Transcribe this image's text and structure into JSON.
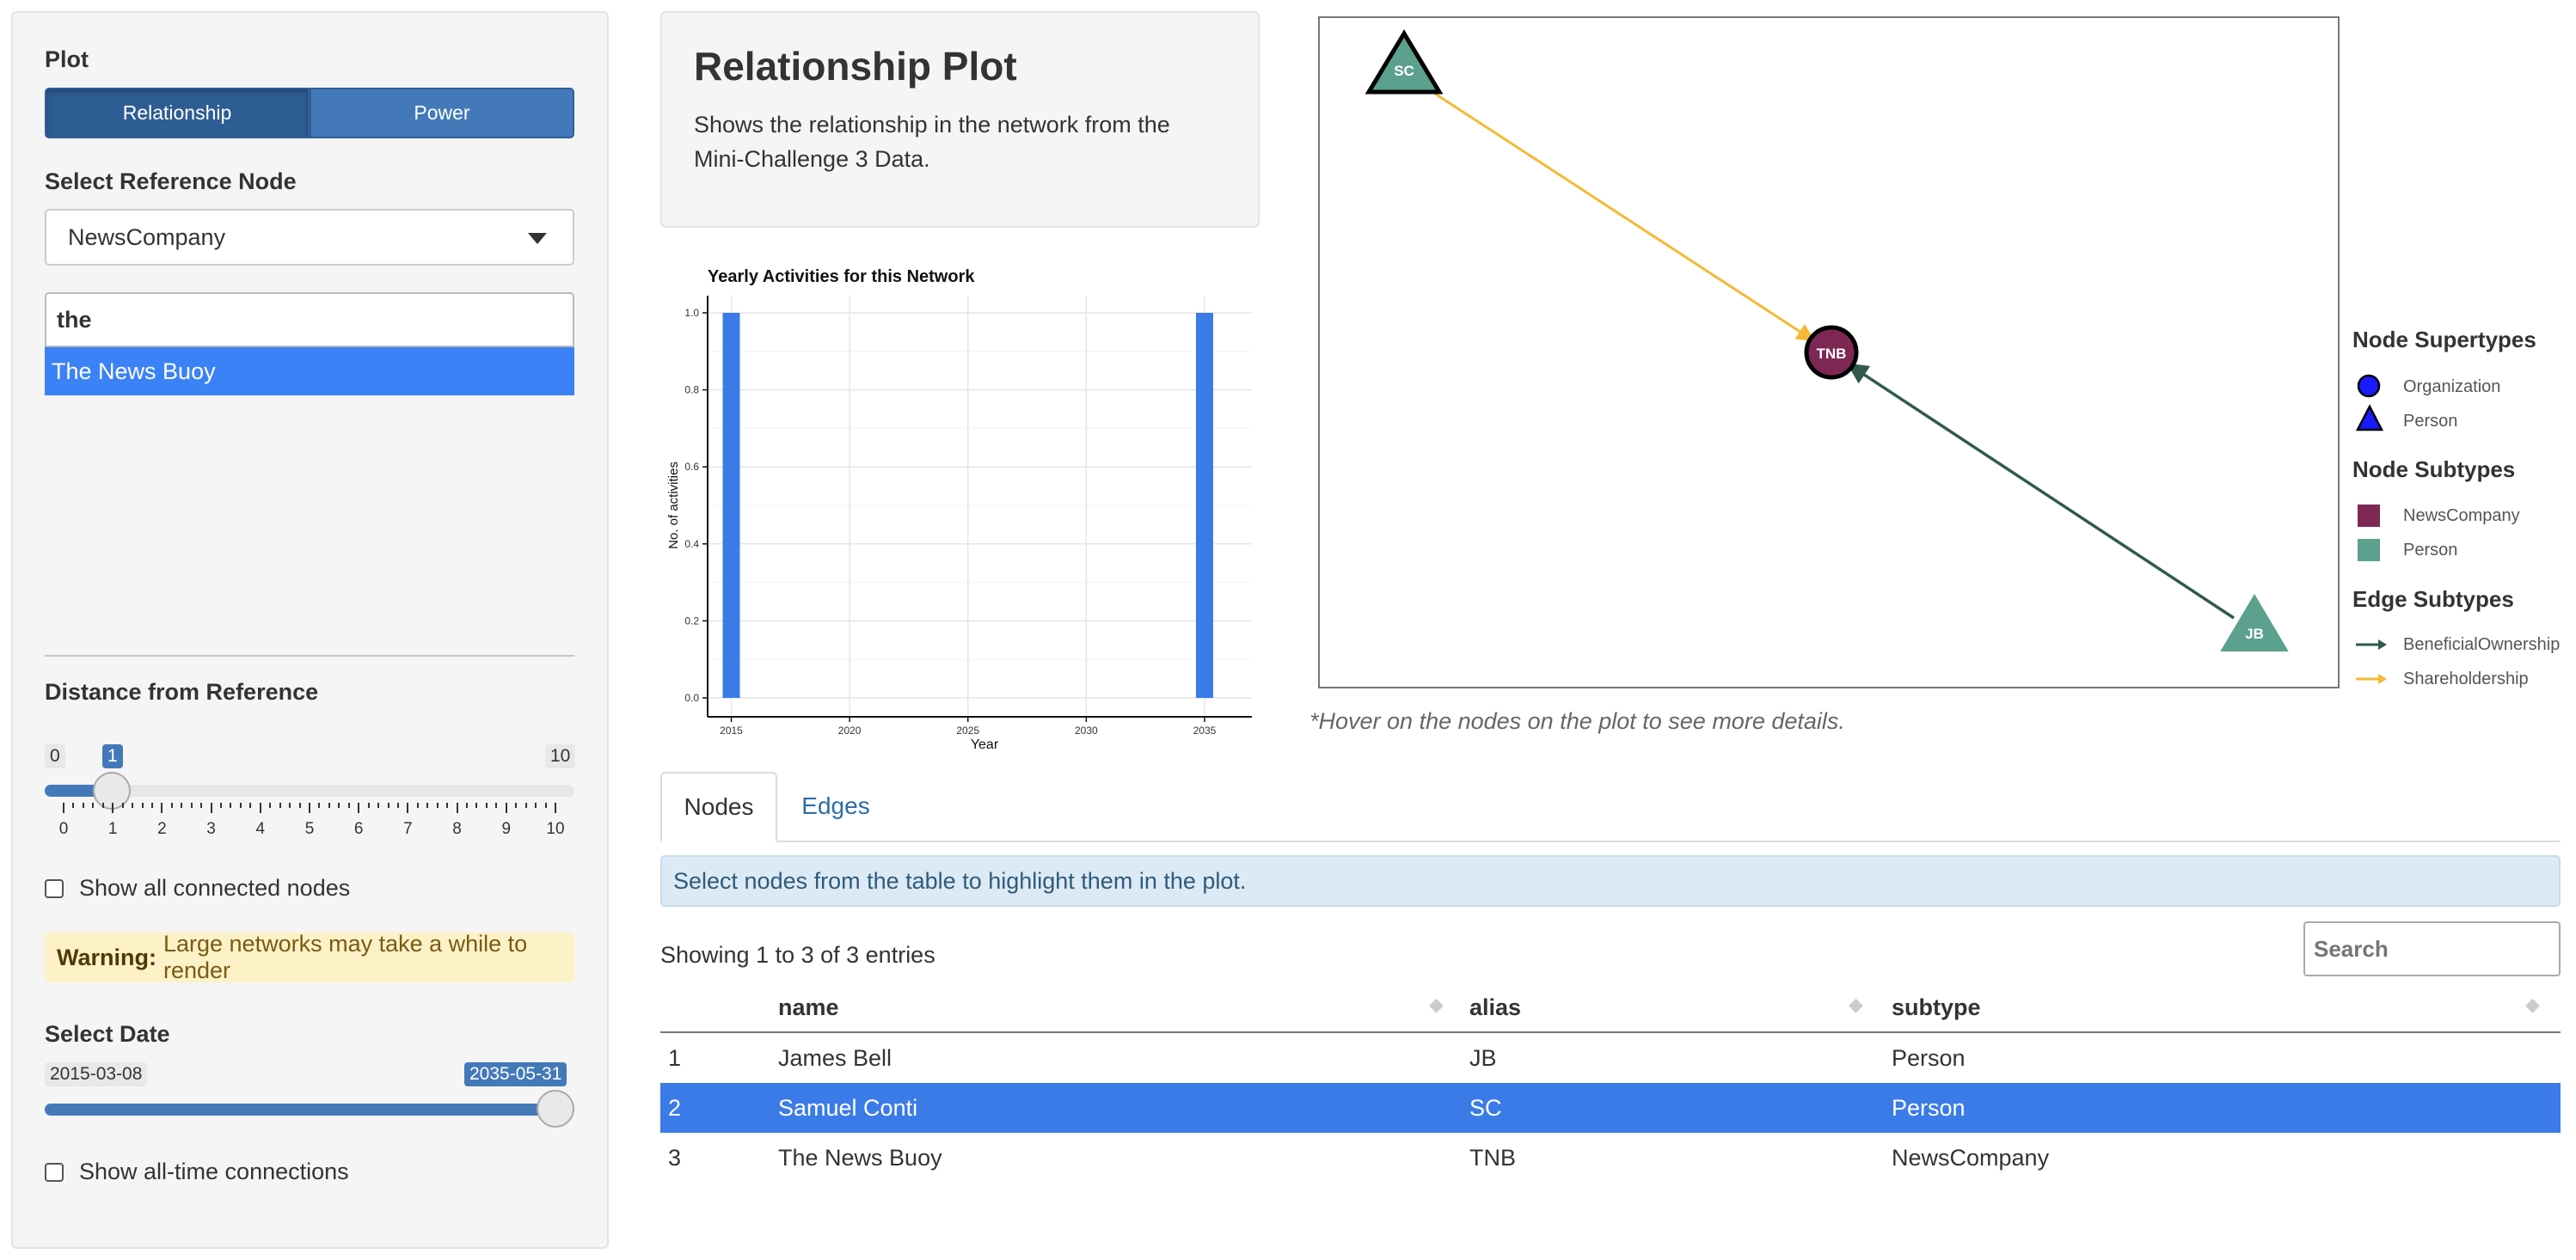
{
  "sidebar": {
    "plot_label": "Plot",
    "plot_buttons": [
      "Relationship",
      "Power"
    ],
    "active_plot": "Relationship",
    "ref_node_label": "Select Reference Node",
    "ref_node_value": "NewsCompany",
    "search_text": "the",
    "search_result": "The News Buoy",
    "distance_label": "Distance from Reference",
    "distance_min": "0",
    "distance_max": "10",
    "distance_value": "1",
    "distance_ticks": [
      "0",
      "1",
      "2",
      "3",
      "4",
      "5",
      "6",
      "7",
      "8",
      "9",
      "10"
    ],
    "show_connected_label": "Show all connected nodes",
    "warning_bold": "Warning:",
    "warning_text": "Large networks may take a while to render",
    "date_label": "Select Date",
    "date_min": "2015-03-08",
    "date_value": "2035-05-31",
    "show_alltime_label": "Show all-time connections"
  },
  "description": {
    "title": "Relationship Plot",
    "text": "Shows the relationship in the network from the Mini-Challenge 3 Data."
  },
  "chart_data": {
    "type": "bar",
    "title": "Yearly Activities for this Network",
    "xlabel": "Year",
    "ylabel": "No. of activities",
    "x": [
      2015,
      2035
    ],
    "values": [
      1.0,
      1.0
    ],
    "xticks": [
      "2015",
      "2020",
      "2025",
      "2030",
      "2035"
    ],
    "xlim": [
      2014,
      2037
    ],
    "yticks": [
      "0.0",
      "0.2",
      "0.4",
      "0.6",
      "0.8",
      "1.0"
    ],
    "ylim": [
      0,
      1.0
    ],
    "grid": true,
    "color": "#3b7be8"
  },
  "network": {
    "nodes": [
      {
        "id": "SC",
        "shape": "triangle",
        "color": "#5ca08e"
      },
      {
        "id": "TNB",
        "shape": "circle",
        "color": "#7e2754"
      },
      {
        "id": "JB",
        "shape": "triangle",
        "color": "#5ca08e"
      }
    ],
    "edges": [
      {
        "from": "SC",
        "to": "TNB",
        "type": "Shareholdership",
        "color": "#f5b935"
      },
      {
        "from": "JB",
        "to": "TNB",
        "type": "BeneficialOwnership",
        "color": "#2f5a4c"
      }
    ],
    "hint": "*Hover on the nodes on the plot to see more details."
  },
  "legend": {
    "supertypes_title": "Node Supertypes",
    "supertypes": [
      "Organization",
      "Person"
    ],
    "supertype_color": "#1a1aff",
    "subtypes_title": "Node Subtypes",
    "subtypes": [
      {
        "label": "NewsCompany",
        "color": "#7e2754"
      },
      {
        "label": "Person",
        "color": "#5ca08e"
      }
    ],
    "edges_title": "Edge Subtypes",
    "edges": [
      {
        "label": "BeneficialOwnership",
        "color": "#2f5a4c"
      },
      {
        "label": "Shareholdership",
        "color": "#f5b935"
      }
    ]
  },
  "tabs": [
    "Nodes",
    "Edges"
  ],
  "active_tab": "Nodes",
  "table": {
    "info": "Select nodes from the table to highlight them in the plot.",
    "entries": "Showing 1 to 3 of 3 entries",
    "search_placeholder": "Search",
    "columns": [
      "name",
      "alias",
      "subtype"
    ],
    "rows": [
      {
        "index": "1",
        "name": "James Bell",
        "alias": "JB",
        "subtype": "Person"
      },
      {
        "index": "2",
        "name": "Samuel Conti",
        "alias": "SC",
        "subtype": "Person"
      },
      {
        "index": "3",
        "name": "The News Buoy",
        "alias": "TNB",
        "subtype": "NewsCompany"
      }
    ],
    "selected_row": 2
  }
}
